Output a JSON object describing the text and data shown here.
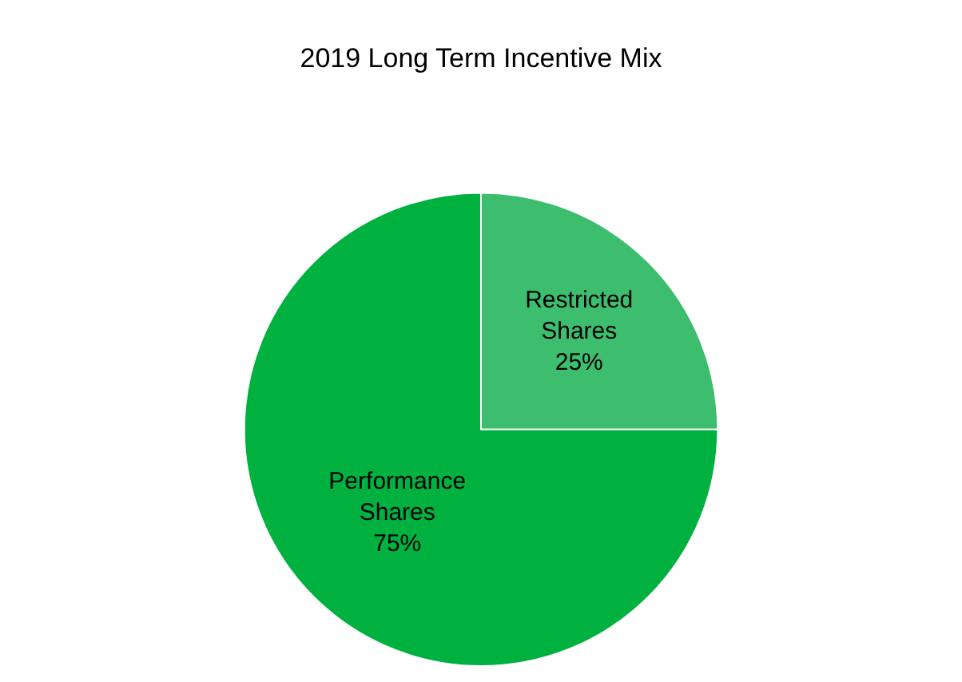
{
  "chart_data": {
    "type": "pie",
    "title": "2019 Long Term Incentive Mix",
    "categories": [
      "Restricted Shares",
      "Performance Shares"
    ],
    "values": [
      25,
      75
    ],
    "colors": [
      "#3cbe6e",
      "#00b140"
    ],
    "value_labels": [
      "25%",
      "75%"
    ],
    "legend": false
  }
}
